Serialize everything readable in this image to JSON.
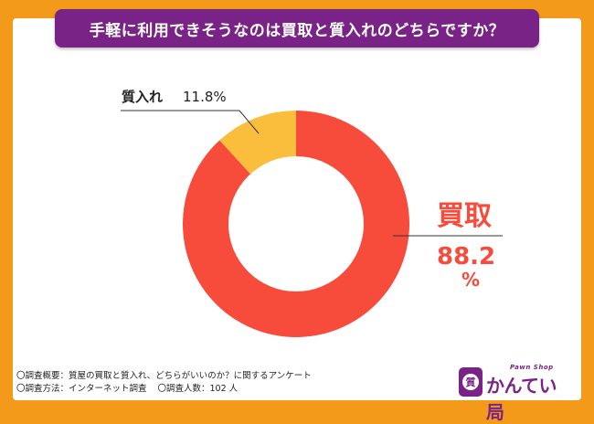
{
  "title": "手軽に利用できそうなのは買取と質入れのどちらですか？",
  "chart_data": {
    "type": "pie",
    "title": "手軽に利用できそうなのは買取と質入れのどちらですか？",
    "slices": [
      {
        "label": "買取",
        "value": 88.2,
        "value_text": "88.2",
        "unit": "%",
        "color": "#f74b3b"
      },
      {
        "label": "質入れ",
        "value": 11.8,
        "value_text": "11.8%",
        "color": "#fbbd3c"
      }
    ]
  },
  "footnotes": {
    "line1": "〇調査概要：質屋の買取と質入れ、どちらがいいのか？に関するアンケート",
    "line2a": "〇調査方法：インターネット調査",
    "line2b": "〇調査人数：102 人"
  },
  "logo": {
    "badge": "質",
    "sub": "Pawn Shop",
    "name": "かんてい局"
  },
  "colors": {
    "background": "#f39a1a",
    "title_bar": "#7a2386",
    "label_text": "#f74b3b"
  }
}
